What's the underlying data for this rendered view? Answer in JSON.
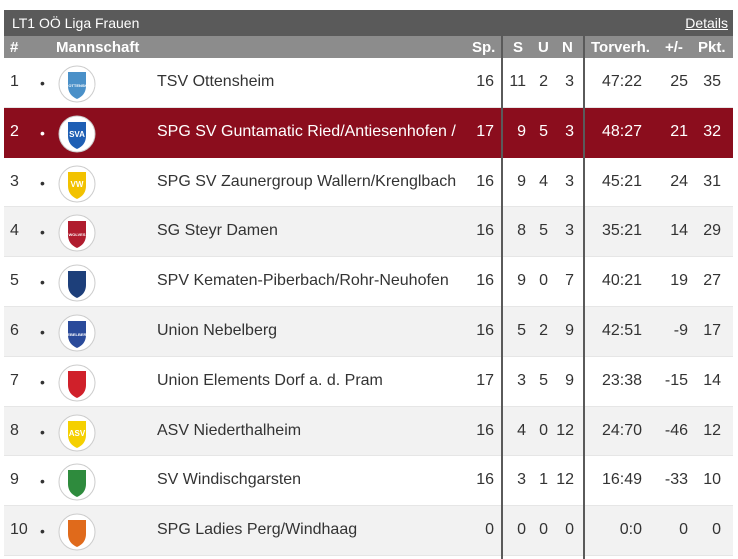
{
  "header": {
    "title": "LT1 OÖ Liga Frauen",
    "details_link": "Details"
  },
  "columns": {
    "rank": "#",
    "team": "Mannschaft",
    "games": "Sp.",
    "wins": "S",
    "draws": "U",
    "losses": "N",
    "goals": "Torverh.",
    "diff": "+/-",
    "points": "Pkt."
  },
  "rows": [
    {
      "rank": "1",
      "team": "TSV Ottensheim",
      "sp": "16",
      "s": "11",
      "u": "2",
      "n": "3",
      "goals": "47:22",
      "diff": "25",
      "pts": "35",
      "logo_text": "TSV OTTENSHEIM",
      "logo_color": "#4a90c8"
    },
    {
      "rank": "2",
      "team": "SPG SV Guntamatic Ried/Antiesenhofen /",
      "sp": "17",
      "s": "9",
      "u": "5",
      "n": "3",
      "goals": "48:27",
      "diff": "21",
      "pts": "32",
      "logo_text": "SVA",
      "logo_color": "#1f5fb4"
    },
    {
      "rank": "3",
      "team": "SPG SV Zaunergroup Wallern/Krenglbach",
      "sp": "16",
      "s": "9",
      "u": "4",
      "n": "3",
      "goals": "45:21",
      "diff": "24",
      "pts": "31",
      "logo_text": "VW",
      "logo_color": "#f2c200"
    },
    {
      "rank": "4",
      "team": "SG Steyr Damen",
      "sp": "16",
      "s": "8",
      "u": "5",
      "n": "3",
      "goals": "35:21",
      "diff": "14",
      "pts": "29",
      "logo_text": "WOLVES",
      "logo_color": "#b01c2e"
    },
    {
      "rank": "5",
      "team": "SPV Kematen-Piberbach/Rohr-Neuhofen",
      "sp": "16",
      "s": "9",
      "u": "0",
      "n": "7",
      "goals": "40:21",
      "diff": "19",
      "pts": "27",
      "logo_text": "",
      "logo_color": "#1d3f7a"
    },
    {
      "rank": "6",
      "team": "Union Nebelberg",
      "sp": "16",
      "s": "5",
      "u": "2",
      "n": "9",
      "goals": "42:51",
      "diff": "-9",
      "pts": "17",
      "logo_text": "NEBELBERG",
      "logo_color": "#2a4a9a"
    },
    {
      "rank": "7",
      "team": "Union Elements Dorf a. d. Pram",
      "sp": "17",
      "s": "3",
      "u": "5",
      "n": "9",
      "goals": "23:38",
      "diff": "-15",
      "pts": "14",
      "logo_text": "",
      "logo_color": "#d0202a"
    },
    {
      "rank": "8",
      "team": "ASV Niederthalheim",
      "sp": "16",
      "s": "4",
      "u": "0",
      "n": "12",
      "goals": "24:70",
      "diff": "-46",
      "pts": "12",
      "logo_text": "ASV",
      "logo_color": "#f5d000"
    },
    {
      "rank": "9",
      "team": "SV Windischgarsten",
      "sp": "16",
      "s": "3",
      "u": "1",
      "n": "12",
      "goals": "16:49",
      "diff": "-33",
      "pts": "10",
      "logo_text": "",
      "logo_color": "#2e8b3d"
    },
    {
      "rank": "10",
      "team": "SPG Ladies Perg/Windhaag",
      "sp": "0",
      "s": "0",
      "u": "0",
      "n": "0",
      "goals": "0:0",
      "diff": "0",
      "pts": "0",
      "logo_text": "",
      "logo_color": "#e06a1b"
    }
  ]
}
